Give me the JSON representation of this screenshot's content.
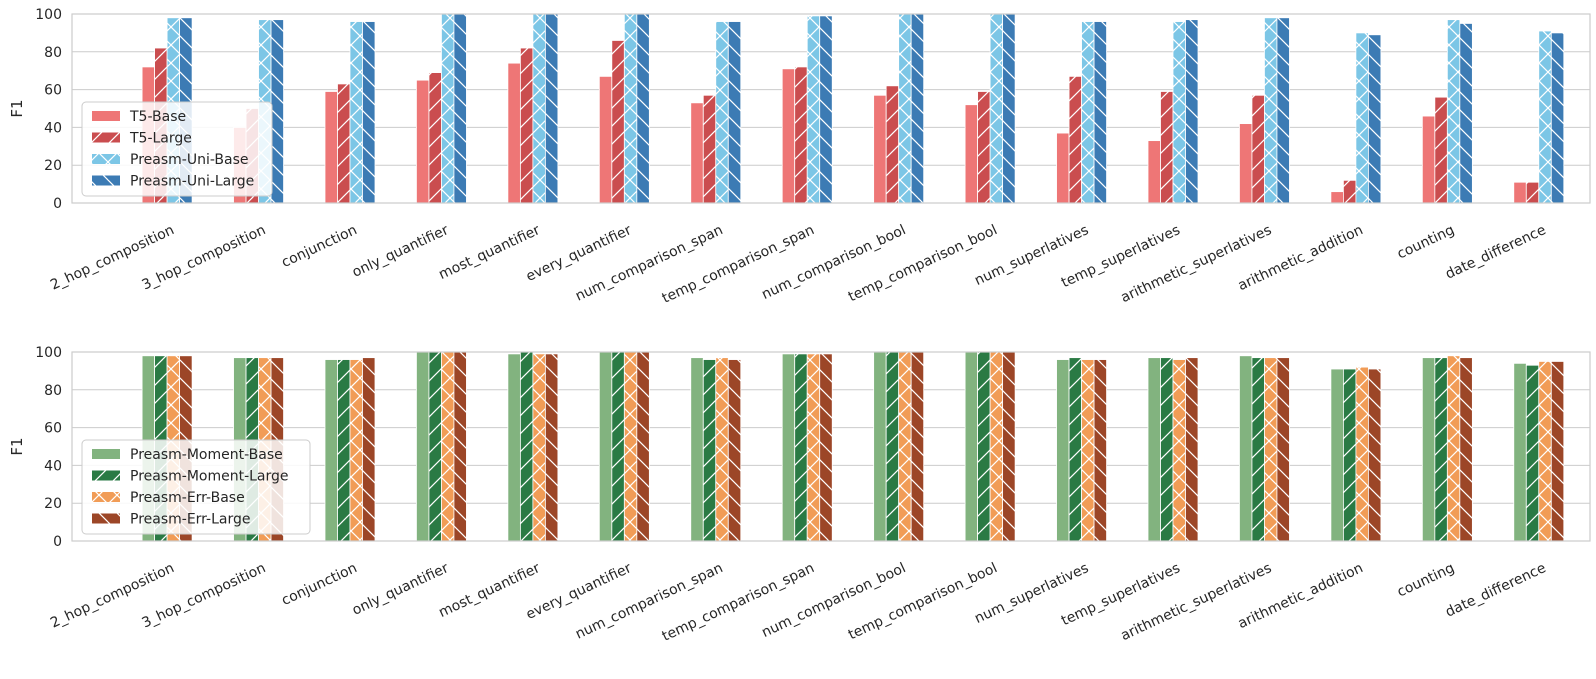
{
  "chart_data": [
    {
      "type": "bar",
      "ylabel": "F1",
      "ylim": [
        0,
        100
      ],
      "yticks": [
        0,
        20,
        40,
        60,
        80,
        100
      ],
      "grid": true,
      "legend_position": "lower-left",
      "categories": [
        "2_hop_composition",
        "3_hop_composition",
        "conjunction",
        "only_quantifier",
        "most_quantifier",
        "every_quantifier",
        "num_comparison_span",
        "temp_comparison_span",
        "num_comparison_bool",
        "temp_comparison_bool",
        "num_superlatives",
        "temp_superlatives",
        "arithmetic_superlatives",
        "arithmetic_addition",
        "counting",
        "date_difference"
      ],
      "series": [
        {
          "name": "T5-Base",
          "color": "#ee7676",
          "hatch": "none",
          "values": [
            72,
            40,
            59,
            65,
            74,
            67,
            53,
            71,
            57,
            52,
            37,
            33,
            42,
            6,
            46,
            11
          ]
        },
        {
          "name": "T5-Large",
          "color": "#ca4d4f",
          "hatch": "slash",
          "values": [
            82,
            50,
            63,
            69,
            82,
            86,
            57,
            72,
            62,
            59,
            67,
            59,
            57,
            12,
            56,
            11
          ]
        },
        {
          "name": "Preasm-Uni-Base",
          "color": "#7cc6e6",
          "hatch": "cross",
          "values": [
            98,
            97,
            96,
            100,
            100,
            100,
            96,
            99,
            100,
            100,
            96,
            96,
            98,
            90,
            97,
            91
          ]
        },
        {
          "name": "Preasm-Uni-Large",
          "color": "#3c7bb4",
          "hatch": "backslash",
          "values": [
            98,
            97,
            96,
            100,
            100,
            100,
            96,
            99,
            100,
            100,
            96,
            97,
            98,
            89,
            95,
            90
          ]
        }
      ]
    },
    {
      "type": "bar",
      "ylabel": "F1",
      "ylim": [
        0,
        100
      ],
      "yticks": [
        0,
        20,
        40,
        60,
        80,
        100
      ],
      "grid": true,
      "legend_position": "lower-left",
      "categories": [
        "2_hop_composition",
        "3_hop_composition",
        "conjunction",
        "only_quantifier",
        "most_quantifier",
        "every_quantifier",
        "num_comparison_span",
        "temp_comparison_span",
        "num_comparison_bool",
        "temp_comparison_bool",
        "num_superlatives",
        "temp_superlatives",
        "arithmetic_superlatives",
        "arithmetic_addition",
        "counting",
        "date_difference"
      ],
      "series": [
        {
          "name": "Preasm-Moment-Base",
          "color": "#82b37f",
          "hatch": "none",
          "values": [
            98,
            97,
            96,
            100,
            99,
            100,
            97,
            99,
            100,
            100,
            96,
            97,
            98,
            91,
            97,
            94
          ]
        },
        {
          "name": "Preasm-Moment-Large",
          "color": "#2a7a44",
          "hatch": "slash",
          "values": [
            98,
            97,
            96,
            100,
            100,
            100,
            96,
            99,
            100,
            100,
            97,
            97,
            97,
            91,
            97,
            93
          ]
        },
        {
          "name": "Preasm-Err-Base",
          "color": "#f19c56",
          "hatch": "cross",
          "values": [
            98,
            97,
            96,
            100,
            99,
            100,
            97,
            99,
            100,
            100,
            96,
            96,
            97,
            92,
            98,
            95
          ]
        },
        {
          "name": "Preasm-Err-Large",
          "color": "#9c4627",
          "hatch": "backslash",
          "values": [
            98,
            97,
            97,
            100,
            99,
            100,
            96,
            99,
            100,
            100,
            96,
            97,
            97,
            91,
            97,
            95
          ]
        }
      ]
    }
  ]
}
